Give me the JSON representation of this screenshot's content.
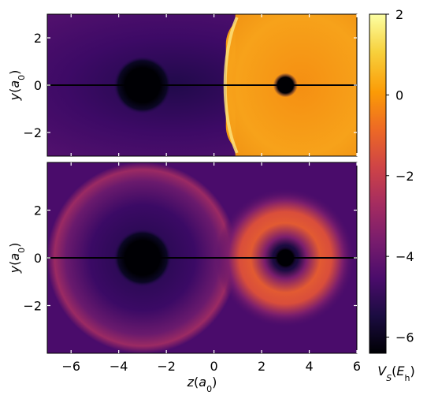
{
  "chart_data": [
    {
      "type": "heatmap",
      "panel": "top",
      "title": "",
      "xlabel": "",
      "ylabel": "y(a0)",
      "ylabel_parts": {
        "var": "y",
        "open": "(",
        "sym": "a",
        "sub": "0",
        "close": ")"
      },
      "xlim": [
        -7,
        6
      ],
      "ylim": [
        -3,
        3
      ],
      "xticks": [
        -6,
        -4,
        -2,
        0,
        2,
        4,
        6
      ],
      "yticks": [
        -2,
        0,
        2
      ],
      "ytick_labels": [
        "−2",
        "0",
        "2"
      ],
      "show_xtick_labels": false,
      "sources": [
        {
          "z": -3,
          "y": 0,
          "dark_core_radius": 0.9
        },
        {
          "z": 3,
          "y": 0,
          "dark_core_radius": 0.38
        }
      ],
      "description_values": {
        "left_region_level": -4.8,
        "right_region_level": 0.2,
        "boundary_ridge_z": 0.5,
        "ridge_level": 1.8
      }
    },
    {
      "type": "heatmap",
      "panel": "bottom",
      "title": "",
      "xlabel": "z(a0)",
      "xlabel_parts": {
        "var": "z",
        "open": "(",
        "sym": "a",
        "sub": "0",
        "close": ")"
      },
      "ylabel": "y(a0)",
      "ylabel_parts": {
        "var": "y",
        "open": "(",
        "sym": "a",
        "sub": "0",
        "close": ")"
      },
      "xlim": [
        -7,
        6
      ],
      "ylim": [
        -4,
        4
      ],
      "xticks": [
        -6,
        -4,
        -2,
        0,
        2,
        4,
        6
      ],
      "xtick_labels": [
        "−6",
        "−4",
        "−2",
        "0",
        "2",
        "4",
        "6"
      ],
      "yticks": [
        -2,
        0,
        2
      ],
      "ytick_labels": [
        "−2",
        "0",
        "2"
      ],
      "sources": [
        {
          "z": -3,
          "y": 0,
          "dark_core_radius": 0.9,
          "ring_radius": 3.4,
          "ring_level": -2.9
        },
        {
          "z": 3,
          "y": 0,
          "dark_core_radius": 0.38,
          "ring_radius": 1.5,
          "ring_level": -1.6
        }
      ]
    }
  ],
  "colorbar": {
    "colormap": "inferno",
    "vmin": -6.4,
    "vmax": 2,
    "ticks": [
      2,
      0,
      -2,
      -4,
      -6
    ],
    "tick_labels": [
      "2",
      "0",
      "−2",
      "−4",
      "−6"
    ],
    "label": "VS(Eh)",
    "label_parts": {
      "var": "V",
      "var_sub": "S",
      "open": "(",
      "sym": "E",
      "sub": "h",
      "close": ")"
    }
  },
  "colors": {
    "inferno": [
      "#000004",
      "#1b0c41",
      "#4a0c6b",
      "#781c6d",
      "#a52c60",
      "#cf4446",
      "#ed6925",
      "#fb9b06",
      "#f7d13d",
      "#fcffa4"
    ]
  }
}
